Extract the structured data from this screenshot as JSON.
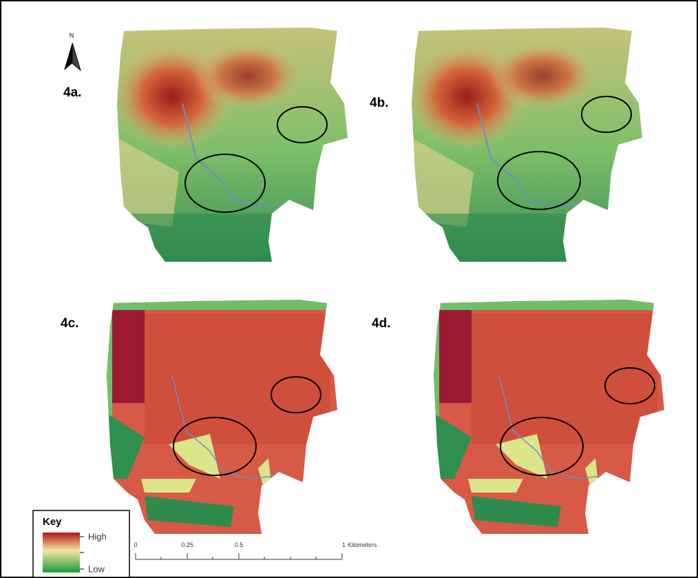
{
  "north_arrow": {
    "label": "N"
  },
  "panels": [
    {
      "label": "4a."
    },
    {
      "label": "4b."
    },
    {
      "label": "4c."
    },
    {
      "label": "4d."
    }
  ],
  "legend": {
    "title": "Key",
    "high": "High",
    "low": "Low"
  },
  "scale_bar": {
    "ticks": [
      0,
      0.25,
      0.5,
      1
    ],
    "unit": "Kilometers"
  }
}
